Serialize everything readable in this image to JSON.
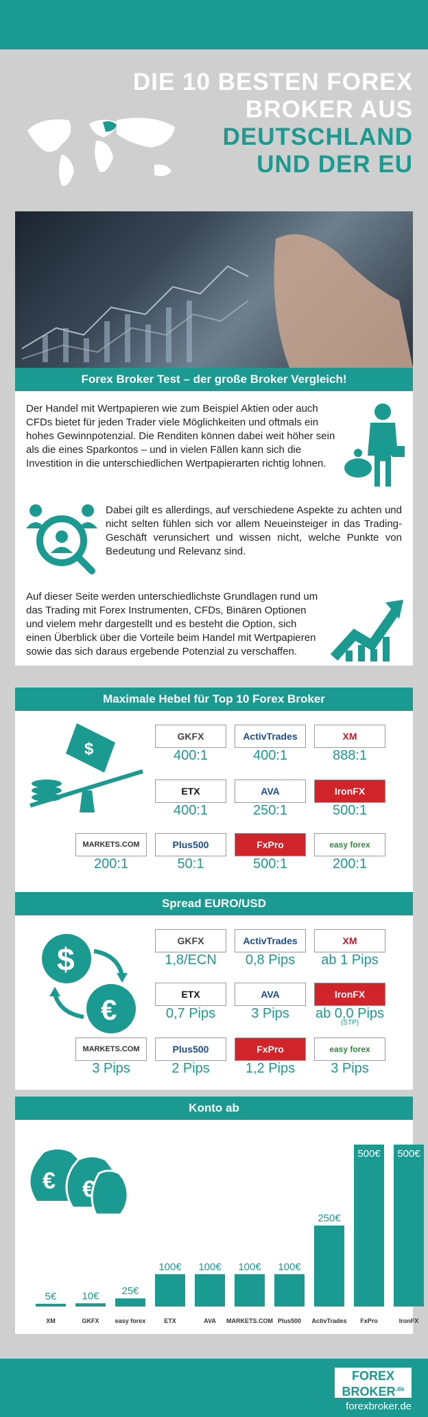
{
  "title": {
    "line1": "DIE 10 BESTEN FOREX",
    "line2": "BROKER AUS",
    "line3": "DEUTSCHLAND",
    "line4": "UND DER EU"
  },
  "section1": {
    "banner": "Forex Broker Test – der große Broker Vergleich!",
    "p1": "Der Handel mit Wertpapieren wie zum Beispiel Aktien oder auch CFDs bietet für jeden Trader viele Möglichkeiten und oftmals ein hohes Gewinnpotenzial. Die Renditen können dabei weit höher sein als die eines Sparkontos – und in vielen Fällen kann sich die Investition in die unterschiedlichen Wertpapierarten richtig lohnen.",
    "p2": "Dabei gilt es allerdings, auf verschiedene Aspekte zu achten und nicht selten fühlen sich vor allem Neueinsteiger in das Trading-Geschäft verunsichert und wissen nicht, welche Punkte von Bedeutung und Relevanz sind.",
    "p3": "Auf dieser Seite werden unterschiedlichste Grundlagen rund um das Trading mit Forex Instrumenten, CFDs, Binären Optionen und vielem mehr dargestellt und es besteht die Option, sich einen Überblick über die Vorteile beim Handel mit Wertpapieren sowie das sich daraus ergebende Potenzial zu verschaffen."
  },
  "section2": {
    "banner": "Maximale Hebel für Top 10 Forex Broker",
    "row1": [
      {
        "logo": "GKFX",
        "value": "400:1"
      },
      {
        "logo": "ActivTrades",
        "value": "400:1"
      },
      {
        "logo": "XM",
        "value": "888:1"
      }
    ],
    "row2": [
      {
        "logo": "ETX",
        "value": "400:1"
      },
      {
        "logo": "AVA",
        "value": "250:1"
      },
      {
        "logo": "IronFX",
        "value": "500:1"
      }
    ],
    "row3": [
      {
        "logo": "MARKETS.COM",
        "value": "200:1"
      },
      {
        "logo": "Plus500",
        "value": "50:1"
      },
      {
        "logo": "FxPro",
        "value": "500:1"
      },
      {
        "logo": "easy forex",
        "value": "200:1"
      }
    ]
  },
  "section3": {
    "banner": "Spread EURO/USD",
    "row1": [
      {
        "logo": "GKFX",
        "value": "1,8/ECN"
      },
      {
        "logo": "ActivTrades",
        "value": "0,8 Pips"
      },
      {
        "logo": "XM",
        "value": "ab 1 Pips"
      }
    ],
    "row2": [
      {
        "logo": "ETX",
        "value": "0,7 Pips"
      },
      {
        "logo": "AVA",
        "value": "3 Pips"
      },
      {
        "logo": "IronFX",
        "value": "ab 0,0 Pips",
        "note": "(STP)"
      }
    ],
    "row3": [
      {
        "logo": "MARKETS.COM",
        "value": "3 Pips"
      },
      {
        "logo": "Plus500",
        "value": "2 Pips"
      },
      {
        "logo": "FxPro",
        "value": "1,2 Pips"
      },
      {
        "logo": "easy forex",
        "value": "3 Pips"
      }
    ]
  },
  "section4": {
    "banner": "Konto ab"
  },
  "chart_data": {
    "type": "bar",
    "categories": [
      "XM",
      "GKFX",
      "easy forex",
      "ETX",
      "AVA",
      "MARKETS.COM",
      "Plus500",
      "ActivTrades",
      "FxPro",
      "IronFX"
    ],
    "values": [
      5,
      10,
      25,
      100,
      100,
      100,
      100,
      250,
      500,
      500
    ],
    "labels": [
      "5€",
      "10€",
      "25€",
      "100€",
      "100€",
      "100€",
      "100€",
      "250€",
      "500€",
      "500€"
    ],
    "ylim": [
      0,
      500
    ]
  },
  "footer": {
    "brand_line1": "FOREX",
    "brand_line2": "BROKER",
    "brand_sup": ".de",
    "url": "forexbroker.de"
  },
  "colors": {
    "accent": "#1a9a91",
    "background": "#cfcfcf"
  }
}
